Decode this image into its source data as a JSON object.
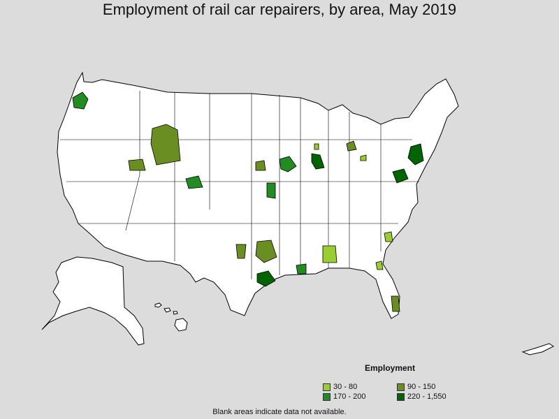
{
  "title": "Employment of rail car repairers, by area, May 2019",
  "legend": {
    "title": "Employment",
    "items": [
      {
        "label": "30 - 80",
        "color": "#9acd32"
      },
      {
        "label": "90 - 150",
        "color": "#6b8e23"
      },
      {
        "label": "170 - 200",
        "color": "#228b22"
      },
      {
        "label": "220 - 1,550",
        "color": "#006400"
      }
    ]
  },
  "footnote": "Blank areas indicate data not available.",
  "colors": {
    "background": "#dcdcdc",
    "land": "#ffffff",
    "border": "#000000"
  }
}
